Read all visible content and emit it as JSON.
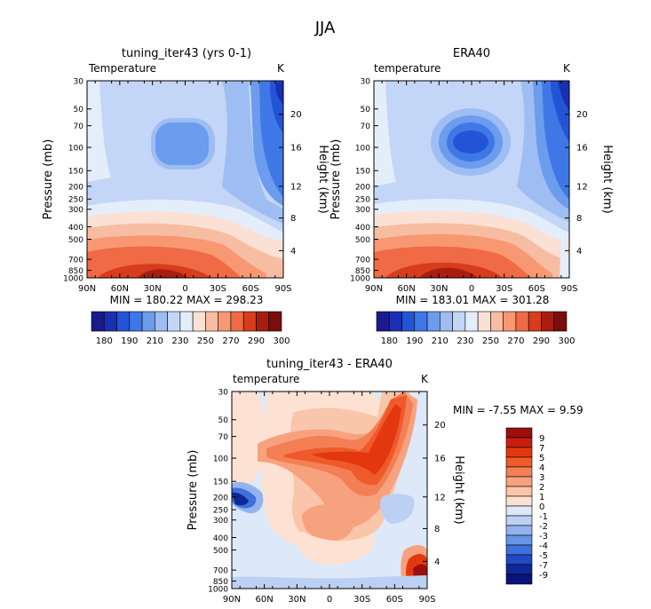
{
  "figure_title": "JJA",
  "pressure_axis_label": "Pressure (mb)",
  "height_axis_label": "Height (km)",
  "panels": [
    {
      "id": "model",
      "title": "tuning_iter43 (yrs 0-1)",
      "var_label": "Temperature",
      "units": "K",
      "stats": "MIN = 180.22   MAX = 298.23",
      "colorbar_ticks": [
        "180",
        "190",
        "210",
        "230",
        "250",
        "270",
        "290",
        "300"
      ]
    },
    {
      "id": "obs",
      "title": "ERA40",
      "var_label": "temperature",
      "units": "K",
      "stats": "MIN = 183.01   MAX = 301.28",
      "colorbar_ticks": [
        "180",
        "190",
        "210",
        "230",
        "250",
        "270",
        "290",
        "300"
      ]
    },
    {
      "id": "diff",
      "title": "tuning_iter43 - ERA40",
      "var_label": "temperature",
      "units": "K",
      "stats": "MIN =   -7.55   MAX =    9.59",
      "colorbar_ticks": [
        "9",
        "7",
        "5",
        "4",
        "3",
        "2",
        "1",
        "0",
        "-1",
        "-2",
        "-3",
        "-4",
        "-5",
        "-7",
        "-9"
      ]
    }
  ],
  "chart_data": [
    {
      "type": "heatmap",
      "title": "tuning_iter43 (yrs 0-1)",
      "xlabel": "",
      "ylabel": "Pressure (mb)",
      "y2label": "Height (km)",
      "x_ticks": [
        "90N",
        "60N",
        "30N",
        "0",
        "30S",
        "60S",
        "90S"
      ],
      "y_ticks": [
        "30",
        "50",
        "70",
        "100",
        "150",
        "200",
        "250",
        "300",
        "400",
        "500",
        "700",
        "850",
        "1000"
      ],
      "y2_ticks": [
        "20",
        "16",
        "12",
        "8",
        "4"
      ],
      "levels": [
        180,
        190,
        200,
        210,
        220,
        230,
        240,
        250,
        260,
        270,
        280,
        290,
        300
      ],
      "min": 180.22,
      "max": 298.23,
      "units": "K"
    },
    {
      "type": "heatmap",
      "title": "ERA40",
      "xlabel": "",
      "ylabel": "Pressure (mb)",
      "y2label": "Height (km)",
      "x_ticks": [
        "90N",
        "60N",
        "30N",
        "0",
        "30S",
        "60S",
        "90S"
      ],
      "y_ticks": [
        "30",
        "50",
        "70",
        "100",
        "150",
        "200",
        "250",
        "300",
        "400",
        "500",
        "700",
        "850",
        "1000"
      ],
      "y2_ticks": [
        "20",
        "16",
        "12",
        "8",
        "4"
      ],
      "levels": [
        180,
        190,
        200,
        210,
        220,
        230,
        240,
        250,
        260,
        270,
        280,
        290,
        300
      ],
      "min": 183.01,
      "max": 301.28,
      "units": "K"
    },
    {
      "type": "heatmap",
      "title": "tuning_iter43 - ERA40",
      "xlabel": "",
      "ylabel": "Pressure (mb)",
      "y2label": "Height (km)",
      "x_ticks": [
        "90N",
        "60N",
        "30N",
        "0",
        "30S",
        "60S",
        "90S"
      ],
      "y_ticks": [
        "30",
        "50",
        "70",
        "100",
        "150",
        "200",
        "250",
        "300",
        "400",
        "500",
        "700",
        "850",
        "1000"
      ],
      "y2_ticks": [
        "20",
        "16",
        "12",
        "8",
        "4"
      ],
      "levels": [
        -9,
        -7,
        -5,
        -4,
        -3,
        -2,
        -1,
        0,
        1,
        2,
        3,
        4,
        5,
        7,
        9
      ],
      "min": -7.55,
      "max": 9.59,
      "units": "K"
    }
  ],
  "colors": {
    "abs_scale": [
      "#1a1a8a",
      "#1a2fb4",
      "#2454d6",
      "#3f78e6",
      "#6b9ced",
      "#9ebdf2",
      "#c3d6f7",
      "#e4eefb",
      "#fbe0d4",
      "#f7bda2",
      "#f79873",
      "#ef6a45",
      "#d73c1c",
      "#a81e0e",
      "#7a0d0d"
    ],
    "diff_scale": [
      "#9b0f0f",
      "#c81e10",
      "#e3380f",
      "#ef5a2d",
      "#f47f55",
      "#f7a27e",
      "#f9c5ab",
      "#fde2d4",
      "#dde8f8",
      "#bcd0f3",
      "#93b3ee",
      "#6894e6",
      "#3e6fdc",
      "#2049c4",
      "#10279a",
      "#0a137a"
    ]
  }
}
